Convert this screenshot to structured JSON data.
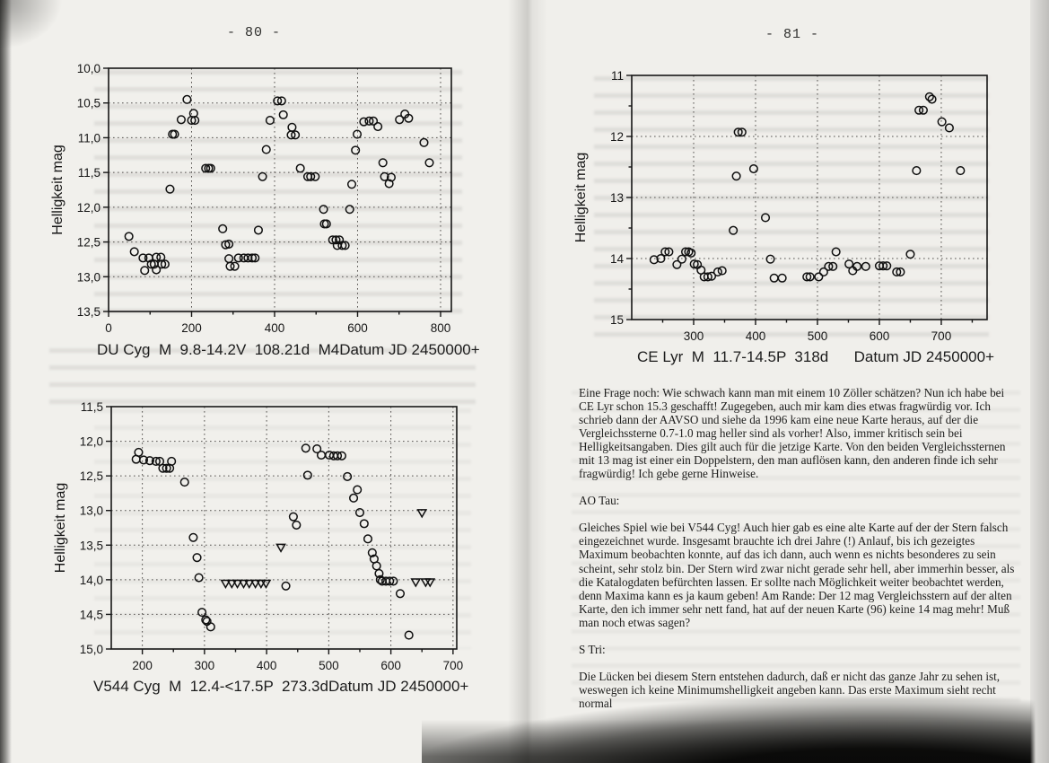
{
  "pages": {
    "left": {
      "header": "- 80 -"
    },
    "right": {
      "header": "- 81 -"
    }
  },
  "chart_data": [
    {
      "type": "scatter",
      "name": "DU Cyg light curve",
      "caption_left": "DU Cyg  M  9.8-14.2V  108.21d  M4",
      "caption_right": "Datum JD 2450000+",
      "ylabel": "Helligkeit mag",
      "x_range": [
        0,
        826
      ],
      "y_range": [
        10.0,
        13.5
      ],
      "x_ticks": [
        0,
        200,
        400,
        600,
        800
      ],
      "x_tick_labels": [
        "0",
        "200",
        "400",
        "600",
        "800"
      ],
      "x_minor": [
        100,
        300,
        500,
        700
      ],
      "x_grid": [
        200,
        400,
        600,
        800
      ],
      "y_ticks": [
        10.0,
        10.5,
        11.0,
        11.5,
        12.0,
        12.5,
        13.0,
        13.5
      ],
      "y_tick_labels": [
        "10,0",
        "10,5",
        "11,0",
        "11,5",
        "12,0",
        "12,5",
        "13,0",
        "13,5"
      ],
      "y_minor": [],
      "y_grid": [
        10.5,
        11.0,
        11.5,
        12.0,
        12.5,
        13.0
      ],
      "points": [
        [
          49,
          12.42
        ],
        [
          62,
          12.64
        ],
        [
          83,
          12.73
        ],
        [
          87,
          12.91
        ],
        [
          97,
          12.73
        ],
        [
          103,
          12.82
        ],
        [
          110,
          12.82
        ],
        [
          115,
          12.72
        ],
        [
          115,
          12.9
        ],
        [
          126,
          12.72
        ],
        [
          128,
          12.82
        ],
        [
          136,
          12.82
        ],
        [
          148,
          11.74
        ],
        [
          154,
          10.95
        ],
        [
          159,
          10.95
        ],
        [
          175,
          10.74
        ],
        [
          189,
          10.45
        ],
        [
          200,
          10.75
        ],
        [
          205,
          10.65
        ],
        [
          208,
          10.75
        ],
        [
          234,
          11.44
        ],
        [
          241,
          11.44
        ],
        [
          246,
          11.44
        ],
        [
          275,
          12.31
        ],
        [
          282,
          12.54
        ],
        [
          290,
          12.53
        ],
        [
          290,
          12.74
        ],
        [
          293,
          12.85
        ],
        [
          304,
          12.85
        ],
        [
          313,
          12.73
        ],
        [
          326,
          12.73
        ],
        [
          336,
          12.73
        ],
        [
          346,
          12.73
        ],
        [
          353,
          12.73
        ],
        [
          361,
          12.33
        ],
        [
          371,
          11.56
        ],
        [
          380,
          11.17
        ],
        [
          389,
          10.75
        ],
        [
          407,
          10.47
        ],
        [
          417,
          10.47
        ],
        [
          421,
          10.67
        ],
        [
          440,
          10.96
        ],
        [
          442,
          10.85
        ],
        [
          450,
          10.96
        ],
        [
          462,
          11.44
        ],
        [
          480,
          11.56
        ],
        [
          487,
          11.56
        ],
        [
          498,
          11.56
        ],
        [
          518,
          12.03
        ],
        [
          520,
          12.24
        ],
        [
          525,
          12.24
        ],
        [
          540,
          12.47
        ],
        [
          548,
          12.47
        ],
        [
          551,
          12.55
        ],
        [
          556,
          12.47
        ],
        [
          563,
          12.55
        ],
        [
          570,
          12.55
        ],
        [
          581,
          12.03
        ],
        [
          586,
          11.67
        ],
        [
          595,
          11.18
        ],
        [
          599,
          10.95
        ],
        [
          615,
          10.77
        ],
        [
          628,
          10.76
        ],
        [
          638,
          10.76
        ],
        [
          649,
          10.84
        ],
        [
          661,
          11.36
        ],
        [
          665,
          11.56
        ],
        [
          676,
          11.66
        ],
        [
          681,
          11.57
        ],
        [
          701,
          10.74
        ],
        [
          714,
          10.66
        ],
        [
          723,
          10.72
        ],
        [
          760,
          11.07
        ],
        [
          773,
          11.36
        ]
      ],
      "limits": []
    },
    {
      "type": "scatter",
      "name": "V544 Cyg light curve",
      "caption_left": "V544 Cyg  M  12.4-<17.5P  273.3d",
      "caption_right": "Datum JD 2450000+",
      "ylabel": "Helligkeit mag",
      "x_range": [
        150,
        706
      ],
      "y_range": [
        11.5,
        15.0
      ],
      "x_ticks": [
        200,
        300,
        400,
        500,
        600,
        700
      ],
      "x_tick_labels": [
        "200",
        "300",
        "400",
        "500",
        "600",
        "700"
      ],
      "x_minor": [
        250,
        350,
        450,
        550,
        650
      ],
      "x_grid": [
        200,
        300,
        400,
        500,
        600,
        700
      ],
      "y_ticks": [
        11.5,
        12.0,
        12.5,
        13.0,
        13.5,
        14.0,
        14.5,
        15.0
      ],
      "y_tick_labels": [
        "11,5",
        "12,0",
        "12,5",
        "13,0",
        "13,5",
        "14,0",
        "14,5",
        "15,0"
      ],
      "y_minor": [],
      "y_grid": [
        12.0,
        12.5,
        13.0,
        13.5,
        14.0,
        14.5
      ],
      "points": [
        [
          190,
          12.26
        ],
        [
          194,
          12.16
        ],
        [
          202,
          12.27
        ],
        [
          212,
          12.28
        ],
        [
          222,
          12.29
        ],
        [
          228,
          12.29
        ],
        [
          233,
          12.39
        ],
        [
          239,
          12.39
        ],
        [
          244,
          12.39
        ],
        [
          247,
          12.29
        ],
        [
          268,
          12.59
        ],
        [
          282,
          13.39
        ],
        [
          288,
          13.68
        ],
        [
          291,
          13.97
        ],
        [
          296,
          14.47
        ],
        [
          302,
          14.58
        ],
        [
          304,
          14.6
        ],
        [
          310,
          14.68
        ],
        [
          431,
          14.09
        ],
        [
          443,
          13.09
        ],
        [
          448,
          13.21
        ],
        [
          463,
          12.1
        ],
        [
          466,
          12.49
        ],
        [
          481,
          12.11
        ],
        [
          488,
          12.2
        ],
        [
          501,
          12.2
        ],
        [
          508,
          12.21
        ],
        [
          514,
          12.21
        ],
        [
          521,
          12.21
        ],
        [
          530,
          12.51
        ],
        [
          540,
          12.82
        ],
        [
          546,
          12.7
        ],
        [
          550,
          13.03
        ],
        [
          557,
          13.19
        ],
        [
          563,
          13.41
        ],
        [
          570,
          13.61
        ],
        [
          573,
          13.7
        ],
        [
          577,
          13.8
        ],
        [
          581,
          13.91
        ],
        [
          583,
          14.0
        ],
        [
          586,
          14.02
        ],
        [
          592,
          14.02
        ],
        [
          598,
          14.02
        ],
        [
          604,
          14.02
        ],
        [
          615,
          14.2
        ],
        [
          629,
          14.8
        ]
      ],
      "limits": [
        [
          334,
          14.05
        ],
        [
          344,
          14.05
        ],
        [
          353,
          14.05
        ],
        [
          363,
          14.05
        ],
        [
          372,
          14.05
        ],
        [
          382,
          14.05
        ],
        [
          391,
          14.05
        ],
        [
          399,
          14.05
        ],
        [
          423,
          13.53
        ],
        [
          650,
          13.03
        ],
        [
          640,
          14.03
        ],
        [
          656,
          14.03
        ],
        [
          663,
          14.03
        ]
      ]
    },
    {
      "type": "scatter",
      "name": "CE Lyr light curve",
      "caption_left": "CE Lyr  M  11.7-14.5P  318d",
      "caption_right": "Datum JD 2450000+",
      "ylabel": "Helligkeit mag",
      "x_range": [
        200,
        774
      ],
      "y_range": [
        11,
        15
      ],
      "x_ticks": [
        300,
        400,
        500,
        600,
        700
      ],
      "x_tick_labels": [
        "300",
        "400",
        "500",
        "600",
        "700"
      ],
      "x_minor": [
        250,
        350,
        450,
        550,
        650,
        750
      ],
      "x_grid": [
        300,
        400,
        500,
        600,
        700
      ],
      "y_ticks": [
        11,
        12,
        13,
        14,
        15
      ],
      "y_tick_labels": [
        "11",
        "12",
        "13",
        "14",
        "15"
      ],
      "y_minor": [
        11.5,
        12.5,
        13.5,
        14.5
      ],
      "y_grid": [
        12,
        13,
        14
      ],
      "points": [
        [
          236,
          14.02
        ],
        [
          247,
          14.0
        ],
        [
          254,
          13.89
        ],
        [
          260,
          13.89
        ],
        [
          273,
          14.1
        ],
        [
          281,
          14.01
        ],
        [
          287,
          13.89
        ],
        [
          292,
          13.89
        ],
        [
          296,
          13.91
        ],
        [
          301,
          14.09
        ],
        [
          306,
          14.1
        ],
        [
          312,
          14.19
        ],
        [
          317,
          14.3
        ],
        [
          323,
          14.3
        ],
        [
          329,
          14.29
        ],
        [
          339,
          14.22
        ],
        [
          346,
          14.2
        ],
        [
          364,
          13.54
        ],
        [
          369,
          12.65
        ],
        [
          372,
          11.93
        ],
        [
          378,
          11.93
        ],
        [
          397,
          12.53
        ],
        [
          416,
          13.33
        ],
        [
          424,
          14.01
        ],
        [
          430,
          14.32
        ],
        [
          443,
          14.32
        ],
        [
          483,
          14.3
        ],
        [
          488,
          14.3
        ],
        [
          502,
          14.3
        ],
        [
          510,
          14.22
        ],
        [
          518,
          14.13
        ],
        [
          525,
          14.13
        ],
        [
          530,
          13.89
        ],
        [
          551,
          14.09
        ],
        [
          557,
          14.2
        ],
        [
          564,
          14.13
        ],
        [
          578,
          14.13
        ],
        [
          600,
          14.12
        ],
        [
          606,
          14.12
        ],
        [
          612,
          14.12
        ],
        [
          628,
          14.22
        ],
        [
          634,
          14.22
        ],
        [
          650,
          13.93
        ],
        [
          660,
          12.56
        ],
        [
          664,
          11.57
        ],
        [
          671,
          11.57
        ],
        [
          681,
          11.35
        ],
        [
          685,
          11.39
        ],
        [
          701,
          11.76
        ],
        [
          713,
          11.86
        ],
        [
          731,
          12.56
        ]
      ],
      "limits": []
    }
  ],
  "text": {
    "para1": "Eine Frage noch: Wie schwach kann man mit einem 10 Zöller schätzen? Nun ich habe bei CE Lyr schon 15.3 geschafft! Zugegeben, auch mir kam dies etwas fragwürdig vor. Ich schrieb dann der AAVSO und siehe da 1996 kam eine neue Karte heraus, auf der die Vergleichssterne 0.7-1.0 mag heller sind als vorher! Also, immer kritisch sein bei Helligkeitsangaben. Dies gilt auch für die jetzige Karte. Von den beiden Vergleichssternen  mit 13 mag ist einer ein Doppelstern, den man auflösen kann, den anderen finde ich sehr fragwürdig! Ich gebe gerne Hinweise.",
    "heading_ao": "AO Tau:",
    "para2": "Gleiches Spiel wie bei V544 Cyg! Auch hier gab es eine alte Karte auf der der Stern falsch eingezeichnet wurde. Insgesamt brauchte ich drei Jahre (!) Anlauf, bis ich gezeigtes Maximum beobachten konnte, auf das ich dann, auch wenn es nichts besonderes zu sein scheint, sehr stolz bin. Der Stern wird zwar nicht gerade sehr hell, aber immerhin besser, als die Katalogdaten befürchten lassen. Er sollte nach Möglichkeit weiter beobachtet werden, denn Maxima kann es ja kaum geben! Am Rande: Der 12 mag Vergleichsstern auf der alten Karte, den ich immer sehr nett fand, hat auf der neuen Karte (96) keine 14 mag mehr! Muß man noch etwas sagen?",
    "heading_s": "S Tri:",
    "para3": "Die Lücken bei diesem Stern entstehen dadurch, daß er nicht das ganze Jahr zu sehen ist, weswegen ich keine Minimumshelligkeit angeben kann. Das erste Maximum sieht recht normal"
  }
}
